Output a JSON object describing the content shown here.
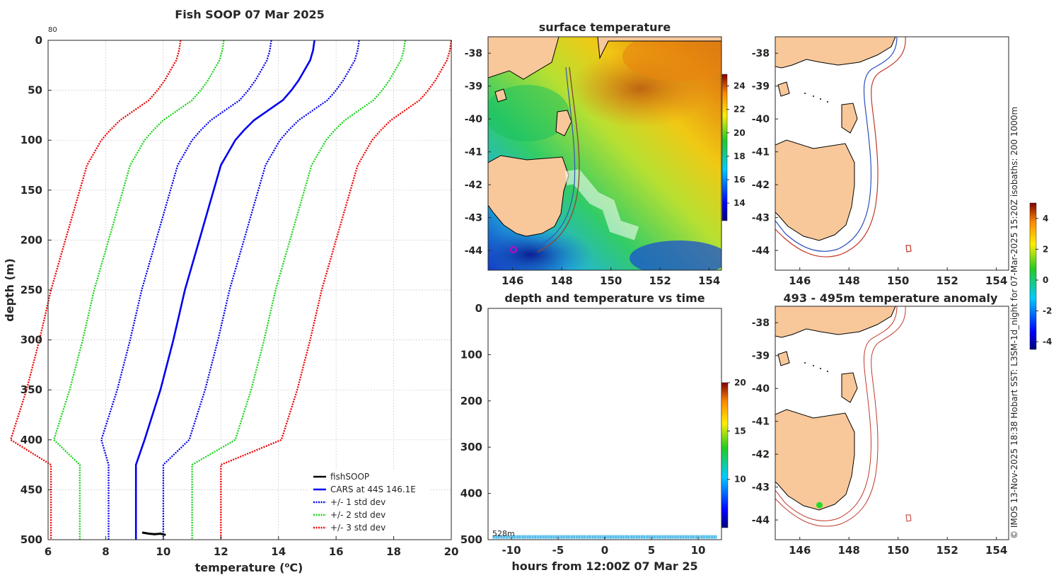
{
  "chart_data": [
    {
      "type": "line",
      "title": "Fish SOOP 07 Mar 2025",
      "corner_label": "80",
      "xlabel_main": "temperature (",
      "xlabel_sup": "o",
      "xlabel_tail": "C)",
      "ylabel": "depth (m)",
      "xlim": [
        6,
        20
      ],
      "ylim": [
        0,
        500
      ],
      "y_reversed": true,
      "x_ticks": [
        "6",
        "8",
        "10",
        "12",
        "14",
        "16",
        "18",
        "20"
      ],
      "y_ticks": [
        "0",
        "50",
        "100",
        "150",
        "200",
        "250",
        "300",
        "350",
        "400",
        "450",
        "500"
      ],
      "depths": [
        0,
        10,
        20,
        30,
        40,
        50,
        60,
        70,
        80,
        90,
        100,
        125,
        150,
        175,
        200,
        250,
        300,
        350,
        400,
        425,
        450,
        500
      ],
      "cars_mean": [
        15.25,
        15.2,
        15.1,
        14.9,
        14.7,
        14.45,
        14.15,
        13.65,
        13.15,
        12.8,
        12.5,
        12.0,
        11.75,
        11.5,
        11.25,
        10.75,
        10.35,
        9.9,
        9.35,
        9.05,
        9.05,
        9.05
      ],
      "series": [
        {
          "name": "fishSOOP",
          "color": "#000000",
          "style": "solid",
          "temps": [
            9.3,
            9.5,
            9.7,
            9.9,
            10.05
          ],
          "depths": [
            493,
            494,
            494.5,
            494,
            495
          ]
        },
        {
          "name": "CARS at 44S 146.1E",
          "color": "#0000ee",
          "style": "solid",
          "offset": 0
        },
        {
          "name": "+/- 1 std dev",
          "color": "#0000ee",
          "style": "dotted",
          "offsets": [
            -1.5,
            1.55
          ],
          "floor_offsets": [
            -0.95,
            0.95
          ]
        },
        {
          "name": "+/- 2 std dev",
          "color": "#19d219",
          "style": "dotted",
          "offsets": [
            -3.15,
            3.15
          ],
          "floor_offsets": [
            -1.95,
            1.95
          ]
        },
        {
          "name": "+/- 3 std dev",
          "color": "#ee0000",
          "style": "dotted",
          "offsets": [
            -4.65,
            4.75
          ],
          "floor_offsets": [
            -2.95,
            2.95
          ]
        }
      ]
    },
    {
      "type": "heatmap",
      "title": "surface temperature",
      "x_ticks": [
        "146",
        "148",
        "150",
        "152",
        "154"
      ],
      "y_ticks": [
        "-38",
        "-39",
        "-40",
        "-41",
        "-42",
        "-43",
        "-44"
      ],
      "xlim": [
        145,
        154.5
      ],
      "ylim": [
        -44.6,
        -37.5
      ],
      "colorbar_ticks": [
        "24",
        "22",
        "20",
        "18",
        "16",
        "14"
      ],
      "colorbar_range": [
        12.5,
        25
      ]
    },
    {
      "type": "scatter",
      "title": "depth and temperature vs time",
      "xlabel": "hours from 12:00Z 07 Mar 25",
      "x_ticks": [
        "-10",
        "-5",
        "0",
        "5",
        "10"
      ],
      "y_ticks": [
        "0",
        "100",
        "200",
        "300",
        "400",
        "500"
      ],
      "xlim": [
        -12.5,
        12.5
      ],
      "ylim": [
        0,
        500
      ],
      "annotation": "528m",
      "track_depth": 494,
      "track_hours": [
        -12,
        12
      ],
      "track_color": "#1aa7e6",
      "colorbar_ticks": [
        "20",
        "15",
        "10"
      ],
      "colorbar_range": [
        5,
        20
      ]
    },
    {
      "type": "heatmap",
      "title": "",
      "x_ticks": [
        "146",
        "148",
        "150",
        "152",
        "154"
      ],
      "y_ticks": [
        "-38",
        "-39",
        "-40",
        "-41",
        "-42",
        "-43",
        "-44"
      ],
      "xlim": [
        145,
        154.5
      ],
      "ylim": [
        -44.6,
        -37.5
      ]
    },
    {
      "type": "heatmap",
      "title": "493 - 495m temperature anomaly",
      "x_ticks": [
        "146",
        "148",
        "150",
        "152",
        "154"
      ],
      "y_ticks": [
        "-38",
        "-39",
        "-40",
        "-41",
        "-42",
        "-43",
        "-44"
      ],
      "xlim": [
        145,
        154.5
      ],
      "ylim": [
        -44.6,
        -37.5
      ],
      "colorbar_ticks": [
        "4",
        "2",
        "0",
        "-2",
        "-4"
      ],
      "colorbar_range": [
        -4.5,
        5
      ],
      "marker": {
        "lon": 146.8,
        "lat": -43.55,
        "color": "#22dd22"
      }
    }
  ],
  "side_caption": "© IMOS 13-Nov-2025 18:38 Hobart SST: L3SM-1d_night for 07-Mar-2025 15:20Z isobaths: 200  1000m",
  "colors": {
    "land": "#f8c89a",
    "isobath_200": "#2b4fbf",
    "isobath_1000": "#c0392b",
    "track_marker": "#cc00cc"
  }
}
